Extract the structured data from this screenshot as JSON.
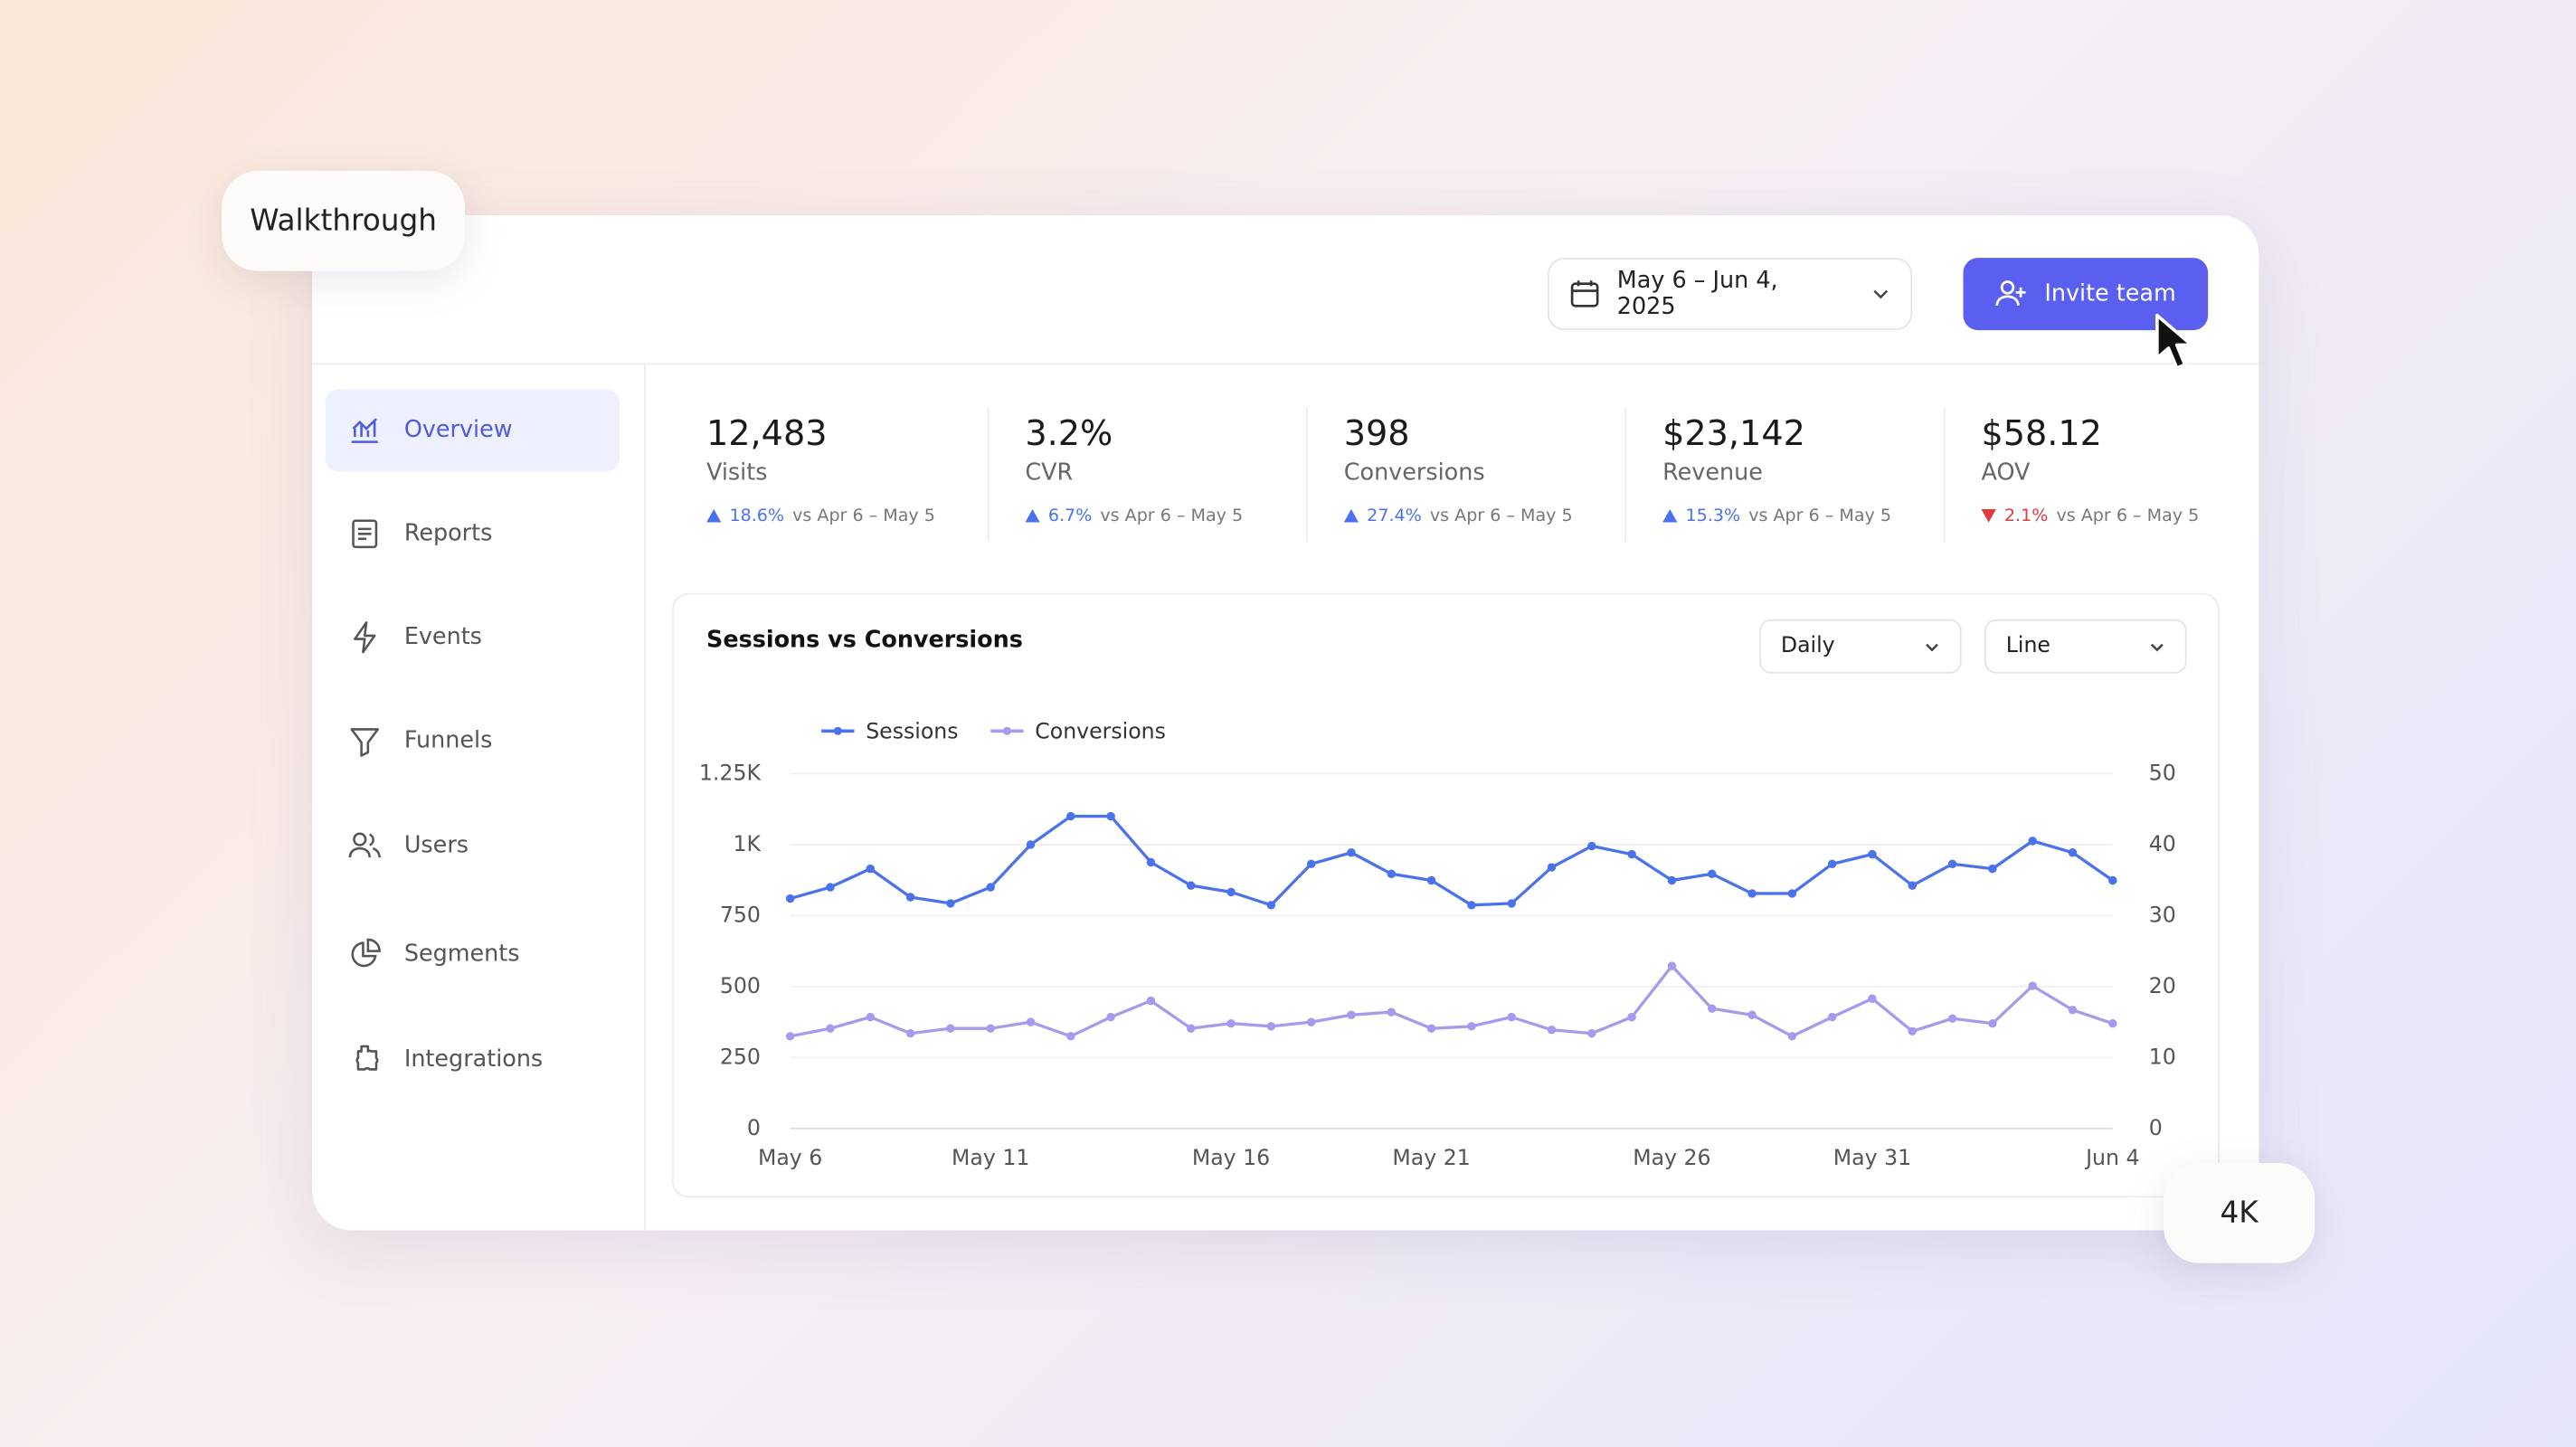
{
  "badges": {
    "walkthrough": "Walkthrough",
    "resolution": "4K"
  },
  "header": {
    "date_range": "May 6 – Jun 4, 2025",
    "invite_button": "Invite team"
  },
  "nav": [
    {
      "label": "Overview",
      "active": true
    },
    {
      "label": "Reports",
      "active": false
    },
    {
      "label": "Events",
      "active": false
    },
    {
      "label": "Funnels",
      "active": false
    },
    {
      "label": "Users",
      "active": false
    },
    {
      "label": "Segments",
      "active": false
    },
    {
      "label": "Integrations",
      "active": false
    }
  ],
  "kpis": [
    {
      "value": "12,483",
      "label": "Visits",
      "delta": "18.6%",
      "trend": "up",
      "compare": "vs Apr 6 – May 5"
    },
    {
      "value": "3.2%",
      "label": "CVR",
      "delta": "6.7%",
      "trend": "up",
      "compare": "vs Apr 6 – May 5"
    },
    {
      "value": "398",
      "label": "Conversions",
      "delta": "27.4%",
      "trend": "up",
      "compare": "vs Apr 6 – May 5"
    },
    {
      "value": "$23,142",
      "label": "Revenue",
      "delta": "15.3%",
      "trend": "up",
      "compare": "vs Apr 6 – May 5"
    },
    {
      "value": "$58.12",
      "label": "AOV",
      "delta": "2.1%",
      "trend": "down",
      "compare": "vs Apr 6 – May 5"
    }
  ],
  "chart_card": {
    "title": "Sessions vs Conversions",
    "interval": "Daily",
    "chart_style": "Line"
  },
  "chart": {
    "type": "line",
    "categories": [
      "May 6",
      null,
      null,
      null,
      null,
      "May 11",
      null,
      null,
      null,
      null,
      null,
      "May 16",
      null,
      null,
      null,
      null,
      "May 21",
      null,
      null,
      null,
      null,
      null,
      "May 26",
      null,
      null,
      null,
      null,
      "May 31",
      null,
      null,
      null,
      null,
      null,
      "Jun 4"
    ],
    "series": [
      {
        "name": "Sessions",
        "color": "#4a72ec",
        "values": [
          810,
          850,
          915,
          815,
          793,
          850,
          1000,
          1100,
          1100,
          938,
          856,
          833,
          787,
          932,
          972,
          897,
          874,
          787,
          793,
          920,
          995,
          966,
          874,
          897,
          828,
          828,
          932,
          966,
          856,
          932,
          915,
          1013,
          972,
          874
        ]
      },
      {
        "name": "Conversions",
        "color": "#a899ee",
        "axis": "y2",
        "values": [
          13,
          14.1,
          15.7,
          13.4,
          14.1,
          14.1,
          15,
          13,
          15.7,
          18,
          14.1,
          14.8,
          14.4,
          15,
          16,
          16.4,
          14.1,
          14.4,
          15.7,
          13.9,
          13.4,
          15.7,
          22.9,
          16.9,
          16,
          13,
          15.7,
          18.3,
          13.7,
          15.5,
          14.8,
          20.1,
          16.7,
          14.8
        ]
      }
    ],
    "ylim": [
      0,
      1250
    ],
    "yticks": [
      0,
      250,
      500,
      750,
      {
        "value": 1000,
        "label": "1K"
      },
      {
        "value": 1250,
        "label": "1.25K"
      }
    ],
    "y2lim": [
      0,
      50
    ],
    "y2ticks": [
      0,
      10,
      20,
      30,
      40,
      50
    ],
    "grid": true
  }
}
